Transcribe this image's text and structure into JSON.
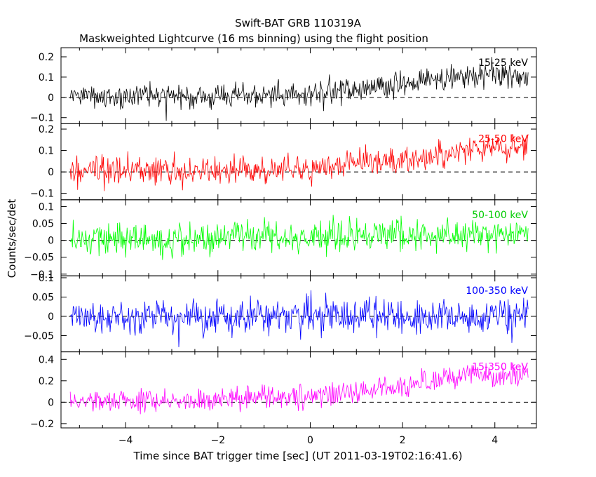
{
  "chart_data": {
    "type": "line",
    "title": "Swift-BAT GRB 110319A",
    "subtitle": "Maskweighted Lightcurve (16 ms binning) using the flight position",
    "xlabel": "Time since BAT trigger time [sec] (UT 2011-03-19T02:16:41.6)",
    "ylabel": "Counts/sec/det",
    "xlim": [
      -5.4,
      4.9
    ],
    "x_ticks": [
      -4,
      -2,
      0,
      2,
      4
    ],
    "x_tick_labels": [
      "−4",
      "−2",
      "0",
      "2",
      "4"
    ],
    "x_start": -5.2,
    "x_end": 4.72,
    "bin": 0.016,
    "grid": false,
    "panels": [
      {
        "name": "15-25 keV",
        "color": "#000000",
        "ylim": [
          -0.13,
          0.245
        ],
        "y_ticks": [
          -0.1,
          0,
          0.1,
          0.2
        ],
        "y_tick_labels": [
          "−0.1",
          "0",
          "0.1",
          "0.2"
        ],
        "trend_x": [
          -5.2,
          -2.0,
          0.0,
          2.0,
          3.0,
          4.72
        ],
        "trend_y": [
          0.01,
          0.0,
          0.02,
          0.06,
          0.1,
          0.11
        ],
        "noise": 0.045,
        "label": "15-25 keV",
        "label_color": "#000000"
      },
      {
        "name": "25-50 keV",
        "color": "#ff0000",
        "ylim": [
          -0.13,
          0.225
        ],
        "y_ticks": [
          -0.1,
          0,
          0.1,
          0.2
        ],
        "y_tick_labels": [
          "−0.1",
          "0",
          "0.1",
          "0.2"
        ],
        "trend_x": [
          -5.2,
          -2.0,
          0.0,
          2.0,
          3.0,
          4.72
        ],
        "trend_y": [
          0.0,
          0.01,
          0.02,
          0.06,
          0.09,
          0.12
        ],
        "noise": 0.045,
        "label": "25-50 keV",
        "label_color": "#ff0000"
      },
      {
        "name": "50-100 keV",
        "color": "#00ff00",
        "ylim": [
          -0.105,
          0.12
        ],
        "y_ticks": [
          -0.1,
          -0.05,
          0,
          0.05,
          0.1
        ],
        "y_tick_labels": [
          "−0.1",
          "−0.05",
          "0",
          "0.05",
          "0.1"
        ],
        "trend_x": [
          -5.2,
          0.0,
          3.5,
          4.72
        ],
        "trend_y": [
          0.0,
          0.01,
          0.02,
          0.015
        ],
        "noise": 0.035,
        "label": "50-100 keV",
        "label_color": "#00cc00"
      },
      {
        "name": "100-350 keV",
        "color": "#0000ff",
        "ylim": [
          -0.092,
          0.105
        ],
        "y_ticks": [
          -0.05,
          0,
          0.05,
          0.1
        ],
        "y_tick_labels": [
          "−0.05",
          "0",
          "0.05",
          "0.1"
        ],
        "trend_x": [
          -5.2,
          4.72
        ],
        "trend_y": [
          0.0,
          0.0
        ],
        "noise": 0.033,
        "label": "100-350 keV",
        "label_color": "#0000ff"
      },
      {
        "name": "15-350 keV",
        "color": "#ff00ff",
        "ylim": [
          -0.24,
          0.47
        ],
        "y_ticks": [
          -0.2,
          0,
          0.2,
          0.4
        ],
        "y_tick_labels": [
          "−0.2",
          "0",
          "0.2",
          "0.4"
        ],
        "trend_x": [
          -5.2,
          -2.0,
          0.0,
          2.0,
          3.0,
          4.72
        ],
        "trend_y": [
          0.0,
          0.03,
          0.06,
          0.14,
          0.24,
          0.26
        ],
        "noise": 0.075,
        "label": "15-350 keV",
        "label_color": "#ff00ff"
      }
    ]
  }
}
